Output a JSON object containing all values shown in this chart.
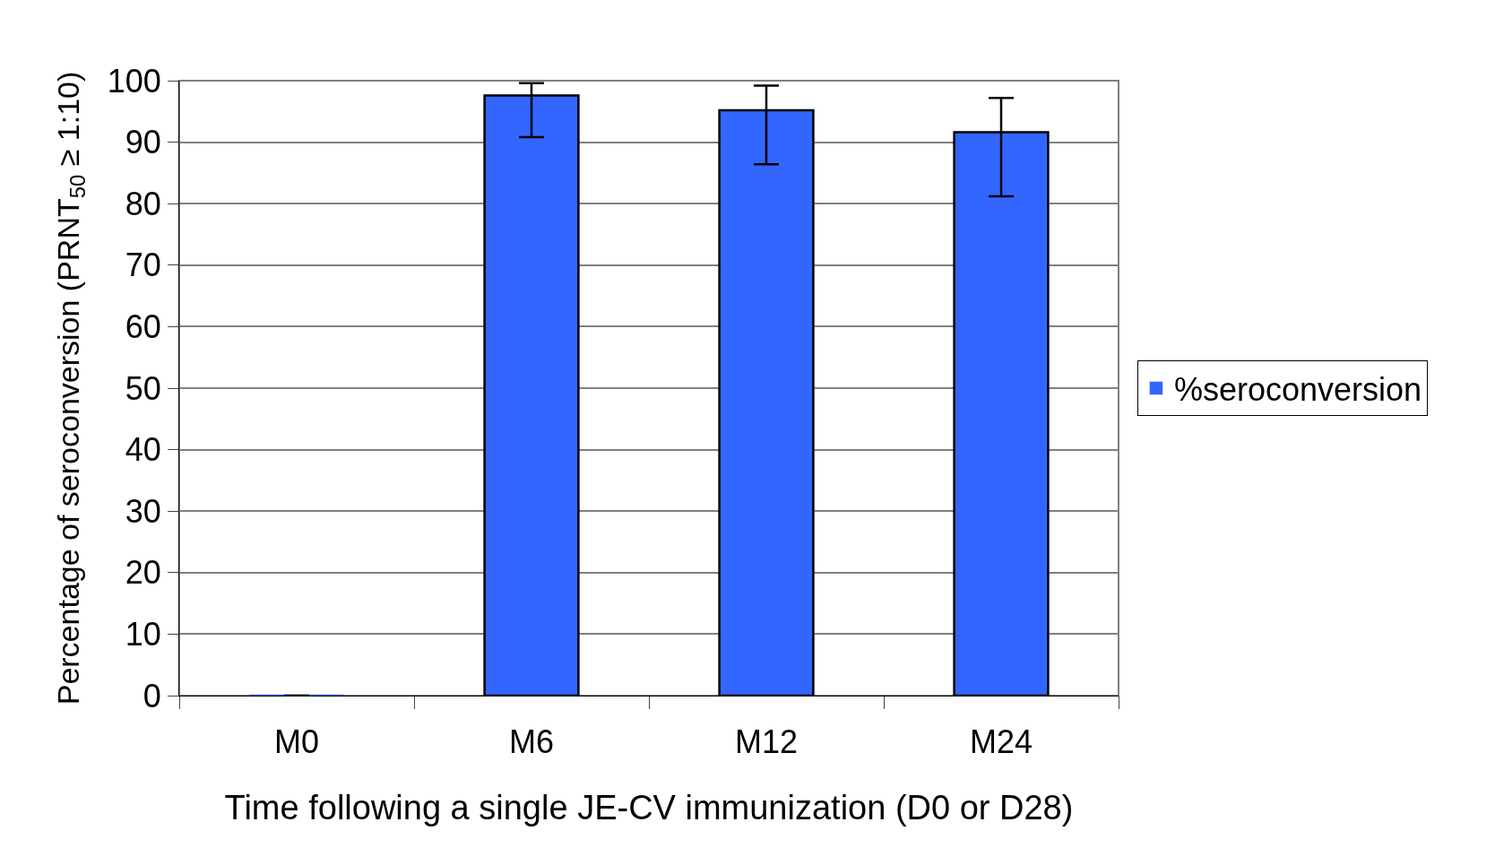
{
  "chart_data": {
    "type": "bar",
    "xlabel": "Time following a single JE-CV immunization (D0 or D28)",
    "ylabel": "Percentage of seroconversion (PRNT$_{50}$ ≥ 1:10)",
    "categories": [
      "M0",
      "M6",
      "M12",
      "M24"
    ],
    "series": [
      {
        "name": "%seroconversion",
        "color": "#3366ff",
        "values": [
          0,
          97.6,
          95.2,
          91.6
        ],
        "errors": [
          null,
          [
            90.8,
            99.6
          ],
          [
            86.4,
            99.2
          ],
          [
            81.2,
            97.2
          ]
        ]
      }
    ],
    "ylim": [
      0,
      100
    ],
    "yticks": [
      0,
      10,
      20,
      30,
      40,
      50,
      60,
      70,
      80,
      90,
      100
    ],
    "grid": "y",
    "legend": "right"
  }
}
